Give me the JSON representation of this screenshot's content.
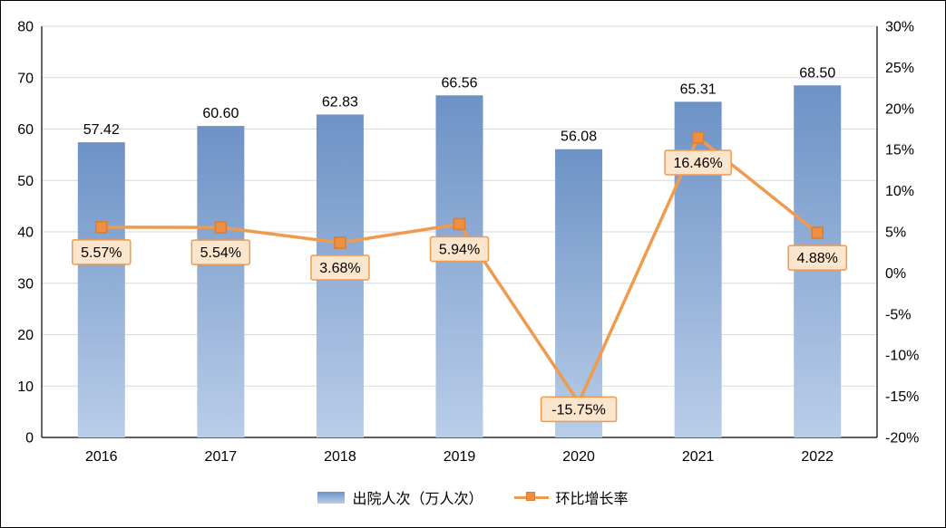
{
  "chart_data": {
    "type": "bar",
    "subtype": "combo-bar-line-dual-axis",
    "title": "",
    "categories": [
      "2016",
      "2017",
      "2018",
      "2019",
      "2020",
      "2021",
      "2022"
    ],
    "series": [
      {
        "name": "出院人次（万人次）",
        "type": "bar",
        "axis": "left",
        "values": [
          57.42,
          60.6,
          62.83,
          66.56,
          56.08,
          65.31,
          68.5
        ],
        "labels": [
          "57.42",
          "60.60",
          "62.83",
          "66.56",
          "56.08",
          "65.31",
          "68.50"
        ]
      },
      {
        "name": "环比增长率",
        "type": "line",
        "axis": "right",
        "values": [
          5.57,
          5.54,
          3.68,
          5.94,
          -15.75,
          16.46,
          4.88
        ],
        "labels": [
          "5.57%",
          "5.54%",
          "3.68%",
          "5.94%",
          "-15.75%",
          "16.46%",
          "4.88%"
        ]
      }
    ],
    "left_axis": {
      "min": 0,
      "max": 80,
      "step": 10,
      "tick_labels": [
        "0",
        "10",
        "20",
        "30",
        "40",
        "50",
        "60",
        "70",
        "80"
      ]
    },
    "right_axis": {
      "min": -20,
      "max": 30,
      "step": 5,
      "tick_labels": [
        "-20%",
        "-15%",
        "-10%",
        "-5%",
        "0%",
        "5%",
        "10%",
        "15%",
        "20%",
        "25%",
        "30%"
      ]
    },
    "grid": true,
    "legend_position": "bottom"
  },
  "colors": {
    "bar_top": "#6d92c6",
    "bar_bottom": "#b9cde8",
    "line": "#f09a4e",
    "marker_fill": "#ef8f43",
    "marker_stroke": "#e07c28",
    "label_box_fill": "#fce5cd",
    "label_box_border": "#f09a4e",
    "grid": "#d9d9d9",
    "axis": "#000000",
    "text": "#000000"
  },
  "legend": {
    "items": [
      {
        "label": "出院人次（万人次）",
        "swatch": "bar"
      },
      {
        "label": "环比增长率",
        "swatch": "line"
      }
    ]
  }
}
